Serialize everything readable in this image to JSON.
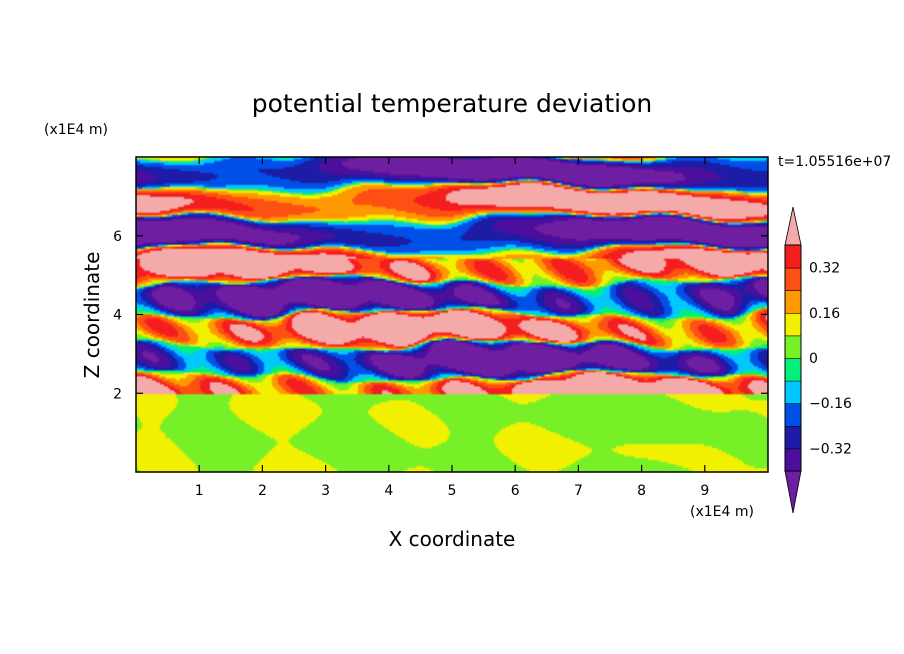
{
  "chart_data": {
    "type": "heatmap",
    "title": "potential temperature deviation",
    "time_label": "t=1.05516e+07",
    "xlabel": "X coordinate",
    "ylabel": "Z coordinate",
    "x_unit": "(x1E4 m)",
    "y_unit": "(x1E4 m)",
    "xlim": [
      0,
      10
    ],
    "ylim": [
      0,
      8
    ],
    "x_ticks": [
      1,
      2,
      3,
      4,
      5,
      6,
      7,
      8,
      9
    ],
    "y_ticks": [
      2,
      4,
      6
    ],
    "colorbar": {
      "levels": [
        -0.4,
        -0.32,
        -0.24,
        -0.16,
        -0.08,
        0,
        0.08,
        0.16,
        0.24,
        0.32,
        0.4
      ],
      "colors": [
        "#4b0f9e",
        "#1c1ca6",
        "#0050e8",
        "#00c8ff",
        "#00f07a",
        "#78f028",
        "#f0f000",
        "#ff9900",
        "#ff5014",
        "#f51e1e"
      ],
      "under_color": "#6e1ea0",
      "over_color": "#f5aaaa",
      "tick_labels": [
        "0.32",
        "0.16",
        "0",
        "−0.16",
        "−0.32"
      ],
      "tick_values": [
        0.32,
        0.16,
        0,
        -0.16,
        -0.32
      ]
    },
    "field_description": {
      "lower_layer_z": [
        0,
        2
      ],
      "lower_layer_values": "about 0 to 0.08 (green / light green)",
      "upper_layer_z": [
        2,
        8
      ],
      "upper_layer_values": "alternating bands below -0.4 (purple) and above 0.4 (pink) with thin mixed layers"
    }
  }
}
